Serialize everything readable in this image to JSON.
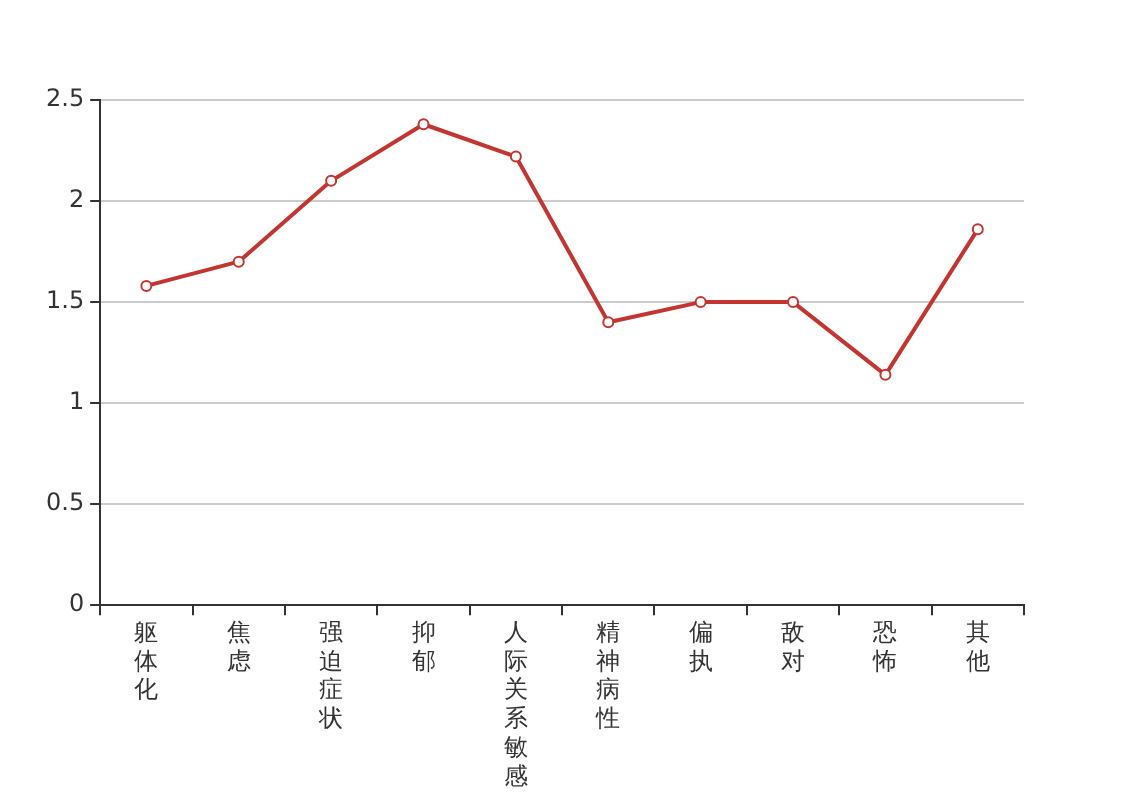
{
  "chart_data": {
    "type": "line",
    "categories": [
      "躯体化",
      "焦虑",
      "强迫症状",
      "抑郁",
      "人际关系敏感",
      "精神病性",
      "偏执",
      "敌对",
      "恐怖",
      "其他"
    ],
    "series": [
      {
        "color": "#c23531",
        "values": [
          1.58,
          1.7,
          2.1,
          2.38,
          2.22,
          1.4,
          1.5,
          1.5,
          1.14,
          1.86
        ]
      }
    ],
    "ylim": [
      0,
      2.5
    ],
    "yticks": [
      0,
      0.5,
      1,
      1.5,
      2,
      2.5
    ],
    "grid": "y",
    "legend": false,
    "marker": "circle",
    "line_style": "solid"
  }
}
